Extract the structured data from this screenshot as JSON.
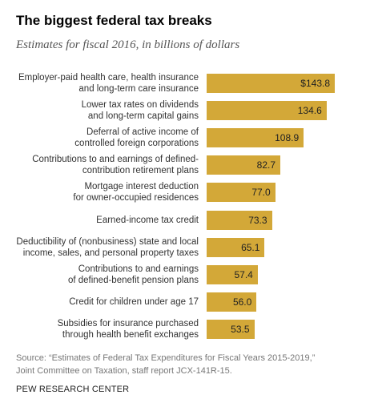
{
  "chart_data": {
    "type": "bar",
    "orientation": "horizontal",
    "title": "The biggest federal tax breaks",
    "subtitle": "Estimates for fiscal 2016, in billions of dollars",
    "categories": [
      "Employer-paid health care, health insurance\nand long-term care insurance",
      "Lower tax rates on dividends\nand long-term capital gains",
      "Deferral of active income of\ncontrolled foreign corporations",
      "Contributions to and earnings of defined-\ncontribution retirement plans",
      "Mortgage interest deduction\nfor owner-occupied residences",
      "Earned-income tax credit",
      "Deductibility of (nonbusiness) state and local\nincome, sales, and personal property taxes",
      "Contributions to and earnings\nof defined-benefit pension plans",
      "Credit for children under age 17",
      "Subsidies for insurance purchased\nthrough health benefit exchanges"
    ],
    "values": [
      143.8,
      134.6,
      108.9,
      82.7,
      77.0,
      73.3,
      65.1,
      57.4,
      56.0,
      53.5
    ],
    "value_labels": [
      "$143.8",
      "134.6",
      "108.9",
      "82.7",
      "77.0",
      "73.3",
      "65.1",
      "57.4",
      "56.0",
      "53.5"
    ],
    "color": "#d3a838",
    "source": "Source: “Estimates of Federal Tax Expenditures for Fiscal Years 2015-2019,”\nJoint Committee on Taxation, staff report JCX-141R-15.",
    "credit": "PEW RESEARCH CENTER"
  }
}
